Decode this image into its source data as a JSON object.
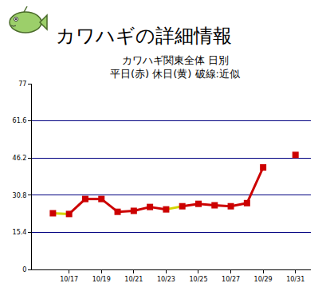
{
  "chart_data": {
    "type": "line",
    "title": "カワハギの詳細情報",
    "subtitle": [
      "カワハギ関東全体 日別",
      "平日(赤) 休日(黄) 破線:近似"
    ],
    "categories": [
      null,
      "10/17",
      null,
      "10/19",
      null,
      "10/21",
      null,
      "10/23",
      null,
      "10/25",
      null,
      "10/27",
      null,
      "10/29",
      null,
      "10/31"
    ],
    "series": [
      {
        "color": "#cc0000",
        "marker": "square",
        "line_style": "solid",
        "colors": [
          "#d4d400",
          "#d4d400",
          "#cc0000",
          "#cc0000",
          "#cc0000",
          "#cc0000",
          "#cc0000",
          "#d4d400",
          "#d4d400",
          "#cc0000",
          "#cc0000",
          "#cc0000",
          "#cc0000",
          "#cc0000",
          "#cc0000",
          "#cc0000"
        ],
        "values": [
          23.3,
          23.0,
          29.2,
          29.2,
          23.9,
          24.3,
          25.9,
          24.9,
          26.2,
          27.2,
          26.6,
          26.2,
          27.5,
          42.3,
          null,
          47.5
        ]
      }
    ],
    "ylim": [
      0,
      77
    ],
    "yticks": [
      0,
      15.4,
      30.8,
      46.2,
      61.6,
      77
    ],
    "grid": true
  }
}
